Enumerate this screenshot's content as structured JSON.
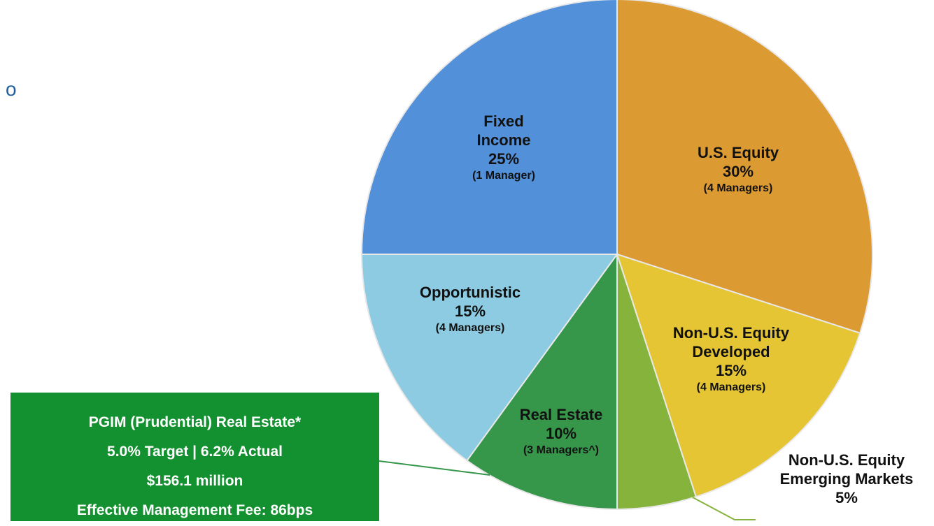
{
  "chart_data": {
    "type": "pie",
    "categories": [
      "U.S. Equity",
      "Non-U.S. Equity Developed",
      "Non-U.S. Equity Emerging Markets",
      "Real Estate",
      "Opportunistic",
      "Fixed Income"
    ],
    "values": [
      30,
      15,
      5,
      10,
      15,
      25
    ],
    "value_labels": [
      "30%",
      "15%",
      "5%",
      "10%",
      "15%",
      "25%"
    ],
    "managers": [
      "(4 Managers)",
      "(4 Managers)",
      null,
      "(3 Managers^)",
      "(4 Managers)",
      "(1 Manager)"
    ],
    "colors": [
      "#dc9a32",
      "#e6c534",
      "#86b33c",
      "#36974a",
      "#8ccbe2",
      "#5290da"
    ]
  },
  "side_text": "o",
  "callout": [
    "PGIM (Prudential) Real Estate*",
    "5.0% Target  | 6.2% Actual",
    "$156.1 million",
    "Effective Management Fee: 86bps"
  ]
}
